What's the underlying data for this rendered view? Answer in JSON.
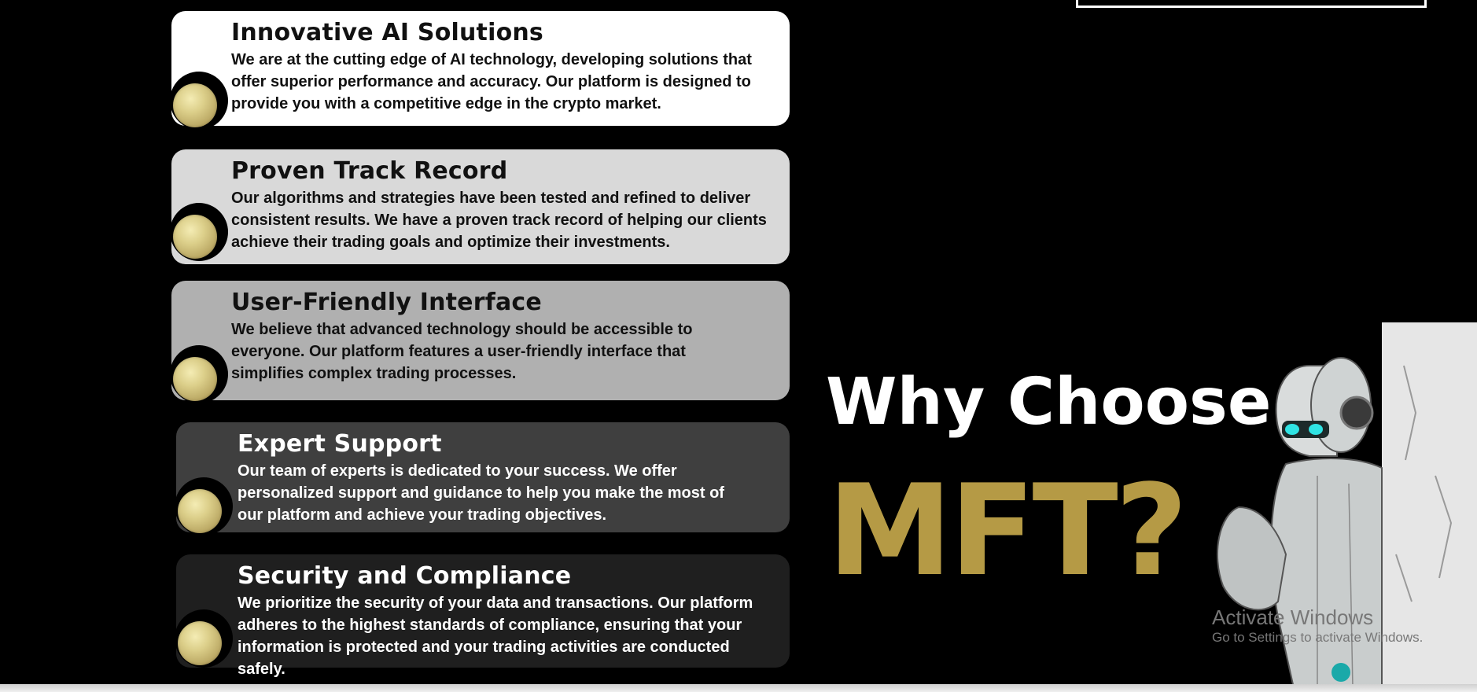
{
  "cards": [
    {
      "title": "Innovative AI Solutions",
      "text": "We are at the cutting edge of AI technology, developing solutions that offer superior performance and accuracy. Our platform is designed to provide you with a competitive edge in the crypto market.",
      "bg": "#ffffff",
      "fg": "#111111"
    },
    {
      "title": "Proven Track Record",
      "text": "Our algorithms and strategies have been tested and refined to deliver consistent results. We have a proven track record of helping our clients achieve their trading goals and optimize their investments.",
      "bg": "#d9d9d9",
      "fg": "#111111"
    },
    {
      "title": "User-Friendly Interface",
      "text": "We believe that advanced technology should be accessible to everyone. Our platform features a user-friendly interface that simplifies complex trading processes.",
      "bg": "#b0b0b0",
      "fg": "#111111"
    },
    {
      "title": "Expert Support",
      "text": "Our team of experts is dedicated to your success. We offer personalized support and guidance to help you make the most of our platform and achieve your trading objectives.",
      "bg": "#3f3f3f",
      "fg": "#ffffff"
    },
    {
      "title": "Security and Compliance",
      "text": "We prioritize the security of your data and transactions. Our platform adheres to the highest standards of compliance, ensuring that your information is protected and your trading activities are conducted safely.",
      "bg": "#1f1f1f",
      "fg": "#ffffff"
    }
  ],
  "hero": {
    "line1": "Why Choose",
    "line2": "MFT?"
  },
  "watermark": {
    "line1": "Activate Windows",
    "line2": "Go to Settings to activate Windows."
  },
  "colors": {
    "background": "#000000",
    "accent_gold": "#b59a45"
  },
  "icons": {
    "card_bullet": "gold-coin-icon",
    "illustration": "robot-illustration"
  }
}
